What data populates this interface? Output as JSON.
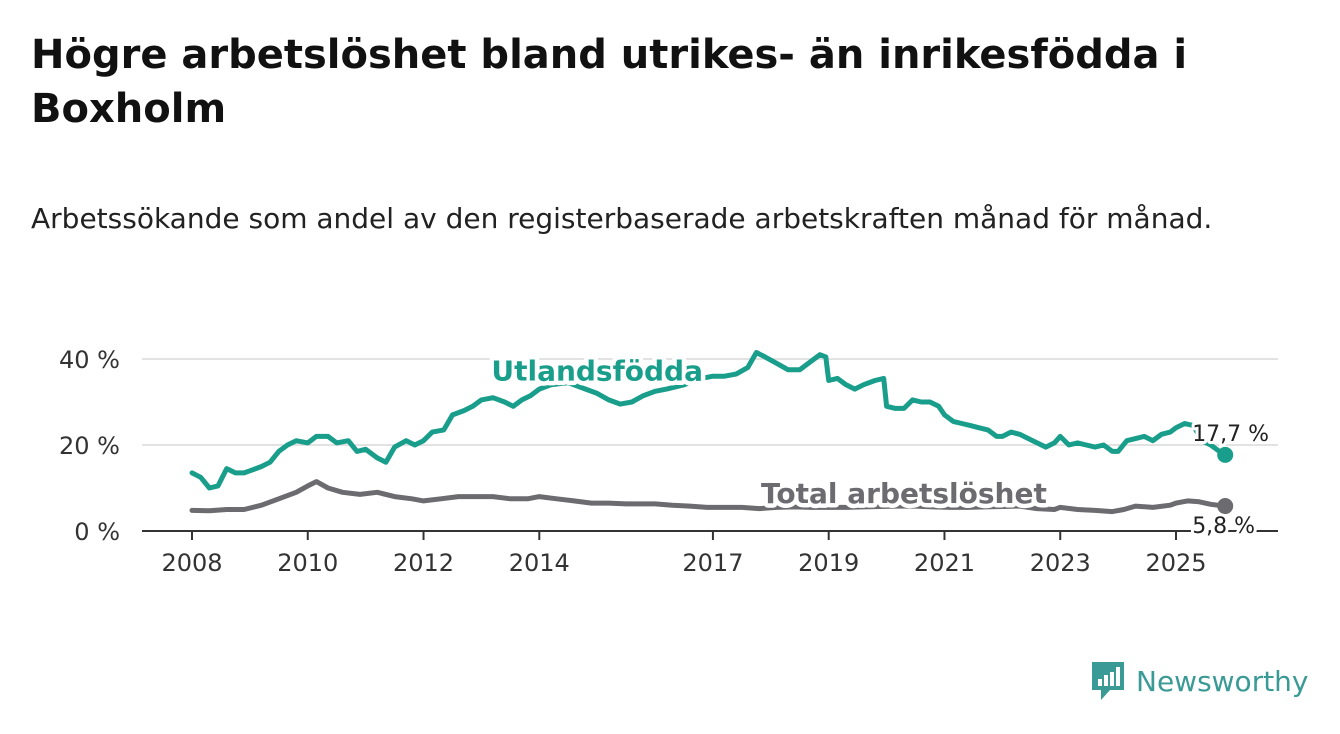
{
  "title": "Högre arbetslöshet bland utrikes- än inrikesfödda i Boxholm",
  "subtitle": "Arbetssökande som andel av den registerbaserade arbetskraften månad för månad.",
  "brand": {
    "name": "Newsworthy",
    "color": "#3a9a96"
  },
  "colors": {
    "foreign": "#1a9e8c",
    "total": "#6b6b70",
    "grid": "#d9d9d9",
    "axis": "#333333"
  },
  "chart_data": {
    "type": "line",
    "title": "Högre arbetslöshet bland utrikes- än inrikesfödda i Boxholm",
    "xlabel": "",
    "ylabel": "",
    "xlim": [
      2008,
      2026.7
    ],
    "ylim": [
      0,
      40
    ],
    "yticks": [
      {
        "value": 0,
        "label": "0 %"
      },
      {
        "value": 20,
        "label": "20 %"
      },
      {
        "value": 40,
        "label": "40 %"
      }
    ],
    "xticks": [
      {
        "value": 2008,
        "label": "2008"
      },
      {
        "value": 2010,
        "label": "2010"
      },
      {
        "value": 2012,
        "label": "2012"
      },
      {
        "value": 2014,
        "label": "2014"
      },
      {
        "value": 2017,
        "label": "2017"
      },
      {
        "value": 2019,
        "label": "2019"
      },
      {
        "value": 2021,
        "label": "2021"
      },
      {
        "value": 2023,
        "label": "2023"
      },
      {
        "value": 2025,
        "label": "2025"
      }
    ],
    "series": [
      {
        "name": "Utlandsfödda",
        "key": "foreign",
        "end_label": "17,7 %",
        "points": [
          [
            2008.0,
            13.5
          ],
          [
            2008.15,
            12.5
          ],
          [
            2008.3,
            10.0
          ],
          [
            2008.45,
            10.5
          ],
          [
            2008.6,
            14.5
          ],
          [
            2008.75,
            13.5
          ],
          [
            2008.9,
            13.5
          ],
          [
            2009.0,
            14.0
          ],
          [
            2009.2,
            15.0
          ],
          [
            2009.35,
            16.0
          ],
          [
            2009.5,
            18.5
          ],
          [
            2009.65,
            20.0
          ],
          [
            2009.8,
            21.0
          ],
          [
            2010.0,
            20.5
          ],
          [
            2010.15,
            22.0
          ],
          [
            2010.35,
            22.0
          ],
          [
            2010.5,
            20.5
          ],
          [
            2010.7,
            21.0
          ],
          [
            2010.85,
            18.5
          ],
          [
            2011.0,
            19.0
          ],
          [
            2011.2,
            17.0
          ],
          [
            2011.35,
            16.0
          ],
          [
            2011.5,
            19.5
          ],
          [
            2011.7,
            21.0
          ],
          [
            2011.85,
            20.0
          ],
          [
            2012.0,
            21.0
          ],
          [
            2012.15,
            23.0
          ],
          [
            2012.35,
            23.5
          ],
          [
            2012.5,
            27.0
          ],
          [
            2012.7,
            28.0
          ],
          [
            2012.85,
            29.0
          ],
          [
            2013.0,
            30.5
          ],
          [
            2013.2,
            31.0
          ],
          [
            2013.4,
            30.0
          ],
          [
            2013.55,
            29.0
          ],
          [
            2013.7,
            30.5
          ],
          [
            2013.85,
            31.5
          ],
          [
            2014.0,
            33.0
          ],
          [
            2014.2,
            34.0
          ],
          [
            2014.5,
            34.5
          ],
          [
            2014.8,
            33.0
          ],
          [
            2015.0,
            32.0
          ],
          [
            2015.2,
            30.5
          ],
          [
            2015.4,
            29.5
          ],
          [
            2015.6,
            30.0
          ],
          [
            2015.8,
            31.5
          ],
          [
            2016.0,
            32.5
          ],
          [
            2016.2,
            33.0
          ],
          [
            2016.5,
            34.0
          ],
          [
            2016.8,
            35.5
          ],
          [
            2017.0,
            36.0
          ],
          [
            2017.2,
            36.0
          ],
          [
            2017.4,
            36.5
          ],
          [
            2017.6,
            38.0
          ],
          [
            2017.75,
            41.5
          ],
          [
            2017.9,
            40.5
          ],
          [
            2018.1,
            39.0
          ],
          [
            2018.3,
            37.5
          ],
          [
            2018.5,
            37.5
          ],
          [
            2018.7,
            39.5
          ],
          [
            2018.85,
            41.0
          ],
          [
            2018.95,
            40.5
          ],
          [
            2019.0,
            35.0
          ],
          [
            2019.15,
            35.5
          ],
          [
            2019.3,
            34.0
          ],
          [
            2019.45,
            33.0
          ],
          [
            2019.6,
            34.0
          ],
          [
            2019.8,
            35.0
          ],
          [
            2019.95,
            35.5
          ],
          [
            2020.0,
            29.0
          ],
          [
            2020.15,
            28.5
          ],
          [
            2020.3,
            28.5
          ],
          [
            2020.45,
            30.5
          ],
          [
            2020.6,
            30.0
          ],
          [
            2020.75,
            30.0
          ],
          [
            2020.9,
            29.0
          ],
          [
            2021.0,
            27.0
          ],
          [
            2021.15,
            25.5
          ],
          [
            2021.3,
            25.0
          ],
          [
            2021.45,
            24.5
          ],
          [
            2021.6,
            24.0
          ],
          [
            2021.75,
            23.5
          ],
          [
            2021.9,
            22.0
          ],
          [
            2022.0,
            22.0
          ],
          [
            2022.15,
            23.0
          ],
          [
            2022.3,
            22.5
          ],
          [
            2022.45,
            21.5
          ],
          [
            2022.6,
            20.5
          ],
          [
            2022.75,
            19.5
          ],
          [
            2022.9,
            20.5
          ],
          [
            2023.0,
            22.0
          ],
          [
            2023.15,
            20.0
          ],
          [
            2023.3,
            20.5
          ],
          [
            2023.45,
            20.0
          ],
          [
            2023.6,
            19.5
          ],
          [
            2023.75,
            20.0
          ],
          [
            2023.9,
            18.5
          ],
          [
            2024.0,
            18.5
          ],
          [
            2024.15,
            21.0
          ],
          [
            2024.3,
            21.5
          ],
          [
            2024.45,
            22.0
          ],
          [
            2024.6,
            21.0
          ],
          [
            2024.75,
            22.5
          ],
          [
            2024.9,
            23.0
          ],
          [
            2025.0,
            24.0
          ],
          [
            2025.15,
            25.0
          ],
          [
            2025.3,
            24.5
          ],
          [
            2025.45,
            21.0
          ],
          [
            2025.6,
            20.0
          ],
          [
            2025.75,
            18.5
          ],
          [
            2025.85,
            17.7
          ]
        ]
      },
      {
        "name": "Total arbetslöshet",
        "key": "total",
        "end_label": "5,8 %",
        "points": [
          [
            2008.0,
            4.8
          ],
          [
            2008.3,
            4.7
          ],
          [
            2008.6,
            5.0
          ],
          [
            2008.9,
            5.0
          ],
          [
            2009.2,
            6.0
          ],
          [
            2009.5,
            7.5
          ],
          [
            2009.8,
            9.0
          ],
          [
            2010.0,
            10.5
          ],
          [
            2010.15,
            11.5
          ],
          [
            2010.35,
            10.0
          ],
          [
            2010.6,
            9.0
          ],
          [
            2010.9,
            8.5
          ],
          [
            2011.2,
            9.0
          ],
          [
            2011.5,
            8.0
          ],
          [
            2011.8,
            7.5
          ],
          [
            2012.0,
            7.0
          ],
          [
            2012.3,
            7.5
          ],
          [
            2012.6,
            8.0
          ],
          [
            2012.9,
            8.0
          ],
          [
            2013.2,
            8.0
          ],
          [
            2013.5,
            7.5
          ],
          [
            2013.8,
            7.5
          ],
          [
            2014.0,
            8.0
          ],
          [
            2014.3,
            7.5
          ],
          [
            2014.6,
            7.0
          ],
          [
            2014.9,
            6.5
          ],
          [
            2015.2,
            6.5
          ],
          [
            2015.5,
            6.3
          ],
          [
            2015.8,
            6.3
          ],
          [
            2016.0,
            6.3
          ],
          [
            2016.3,
            6.0
          ],
          [
            2016.6,
            5.8
          ],
          [
            2016.9,
            5.5
          ],
          [
            2017.2,
            5.5
          ],
          [
            2017.5,
            5.5
          ],
          [
            2017.8,
            5.2
          ],
          [
            2018.1,
            5.5
          ],
          [
            2018.4,
            5.6
          ],
          [
            2018.7,
            5.5
          ],
          [
            2019.0,
            5.5
          ],
          [
            2019.3,
            5.5
          ],
          [
            2019.6,
            5.6
          ],
          [
            2019.9,
            5.7
          ],
          [
            2020.2,
            5.8
          ],
          [
            2020.5,
            5.8
          ],
          [
            2020.8,
            5.6
          ],
          [
            2021.1,
            5.5
          ],
          [
            2021.4,
            5.5
          ],
          [
            2021.7,
            5.6
          ],
          [
            2022.0,
            5.7
          ],
          [
            2022.3,
            5.8
          ],
          [
            2022.6,
            5.2
          ],
          [
            2022.9,
            5.0
          ],
          [
            2023.0,
            5.5
          ],
          [
            2023.3,
            5.0
          ],
          [
            2023.6,
            4.8
          ],
          [
            2023.9,
            4.5
          ],
          [
            2024.1,
            5.0
          ],
          [
            2024.3,
            5.8
          ],
          [
            2024.6,
            5.5
          ],
          [
            2024.9,
            6.0
          ],
          [
            2025.0,
            6.5
          ],
          [
            2025.2,
            7.0
          ],
          [
            2025.4,
            6.8
          ],
          [
            2025.6,
            6.2
          ],
          [
            2025.85,
            5.8
          ]
        ]
      }
    ],
    "annotations": [
      {
        "series": "foreign",
        "text": "Utlandsfödda",
        "x": 2015.0,
        "y": 35
      },
      {
        "series": "total",
        "text": "Total arbetslöshet",
        "x": 2020.3,
        "y": 6.5
      }
    ]
  }
}
